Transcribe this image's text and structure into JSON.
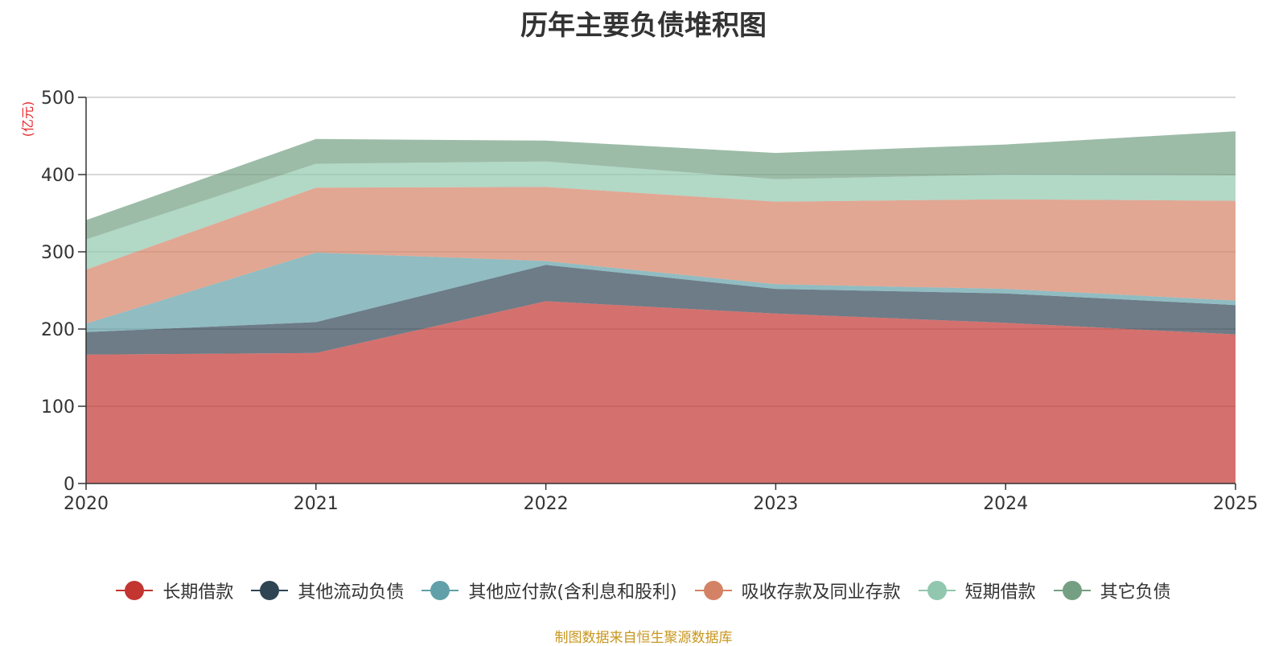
{
  "chart_data": {
    "type": "area",
    "stacked": true,
    "title": "历年主要负债堆积图",
    "ylabel": "(亿元)",
    "xlabel": "",
    "x": [
      "2020",
      "2021",
      "2022",
      "2023",
      "2024",
      "2025"
    ],
    "ylim": [
      0,
      500
    ],
    "yticks": [
      0,
      100,
      200,
      300,
      400,
      500
    ],
    "grid": true,
    "legend_position": "bottom",
    "series": [
      {
        "name": "长期借款",
        "color": "#c23531",
        "values": [
          167,
          169,
          236,
          220,
          208,
          193
        ]
      },
      {
        "name": "其他流动负债",
        "color": "#2f4554",
        "values": [
          29,
          40,
          47,
          32,
          38,
          38
        ]
      },
      {
        "name": "其他应付款(含利息和股利)",
        "color": "#61a0a8",
        "values": [
          11,
          90,
          5,
          6,
          6,
          6
        ]
      },
      {
        "name": "吸收存款及同业存款",
        "color": "#d48265",
        "values": [
          70,
          84,
          96,
          107,
          116,
          129
        ]
      },
      {
        "name": "短期借款",
        "color": "#91c7ae",
        "values": [
          39,
          31,
          33,
          29,
          32,
          33
        ]
      },
      {
        "name": "其它负债",
        "color": "#749f83",
        "values": [
          25,
          32,
          27,
          34,
          39,
          57
        ]
      }
    ],
    "source": "制图数据来自恒生聚源数据库"
  }
}
